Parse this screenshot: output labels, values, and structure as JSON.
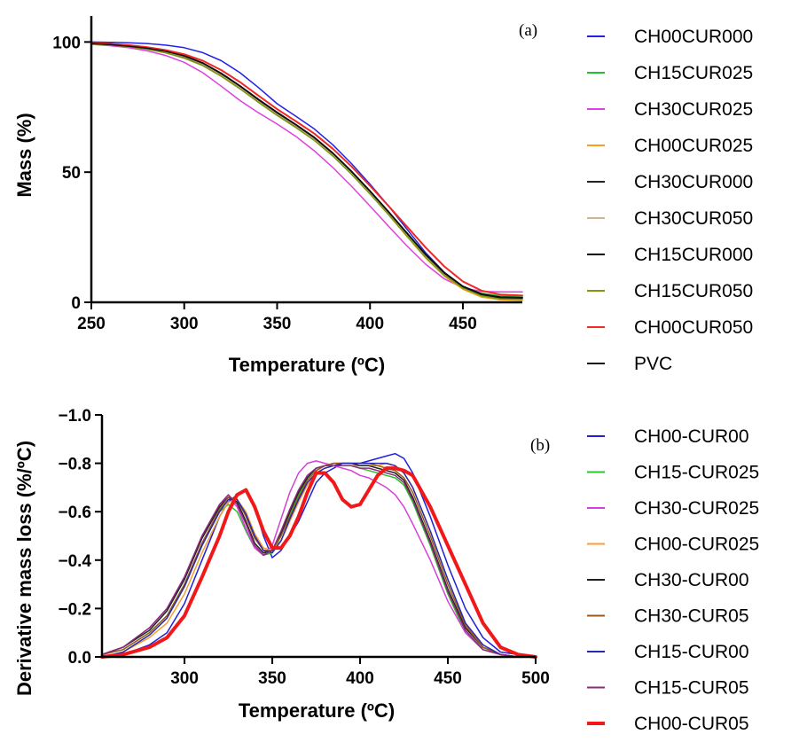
{
  "chart_data": [
    {
      "type": "line",
      "panel_label": "(a)",
      "xlabel": "Temperature (ºC)",
      "ylabel": "Mass (%)",
      "xlim": [
        250,
        482
      ],
      "ylim": [
        0,
        110
      ],
      "xticks": [
        250,
        300,
        350,
        400,
        450
      ],
      "yticks": [
        0,
        50,
        100
      ],
      "grid": false,
      "legend_position": "right",
      "x": [
        250,
        260,
        270,
        280,
        290,
        300,
        310,
        320,
        330,
        340,
        350,
        360,
        370,
        380,
        390,
        400,
        410,
        420,
        430,
        440,
        450,
        460,
        470,
        482
      ],
      "series": [
        {
          "name": "CH00CUR000",
          "color": "#2222e6",
          "width": 1.5,
          "values": [
            100.0,
            99.9,
            99.7,
            99.4,
            98.8,
            97.8,
            95.9,
            92.8,
            88.2,
            82.5,
            76.3,
            71.5,
            66.6,
            60.5,
            53.3,
            45.4,
            37.0,
            28.0,
            19.0,
            11.5,
            6.0,
            3.0,
            2.0,
            1.8
          ]
        },
        {
          "name": "CH15CUR025",
          "color": "#22c032",
          "width": 1.5,
          "values": [
            99.3,
            98.9,
            98.3,
            97.4,
            96.0,
            94.1,
            91.2,
            87.0,
            82.2,
            77.0,
            72.0,
            67.5,
            62.5,
            56.5,
            49.5,
            42.0,
            34.0,
            25.8,
            17.8,
            11.0,
            6.0,
            3.5,
            2.5,
            2.3
          ]
        },
        {
          "name": "CH30CUR025",
          "color": "#e040e0",
          "width": 1.5,
          "values": [
            99.1,
            98.6,
            97.8,
            96.6,
            94.8,
            92.2,
            88.2,
            83.0,
            77.5,
            72.8,
            68.5,
            63.8,
            58.2,
            51.8,
            44.6,
            37.0,
            29.2,
            21.6,
            14.6,
            9.0,
            5.6,
            4.2,
            4.0,
            4.0
          ]
        },
        {
          "name": "CH00CUR025",
          "color": "#f5a020",
          "width": 1.5,
          "values": [
            99.4,
            99.0,
            98.4,
            97.6,
            96.4,
            94.6,
            91.8,
            87.8,
            83.0,
            77.8,
            72.6,
            68.0,
            63.0,
            56.8,
            49.6,
            41.8,
            33.6,
            25.2,
            17.0,
            10.0,
            5.0,
            2.0,
            1.0,
            0.8
          ]
        },
        {
          "name": "CH30CUR000",
          "color": "#222222",
          "width": 1.5,
          "values": [
            99.3,
            98.9,
            98.3,
            97.4,
            96.0,
            94.2,
            91.3,
            87.2,
            82.4,
            77.2,
            72.2,
            67.6,
            62.6,
            56.6,
            49.6,
            42.0,
            34.0,
            25.8,
            17.6,
            10.8,
            5.8,
            3.0,
            2.0,
            1.8
          ]
        },
        {
          "name": "CH30CUR050",
          "color": "#d4b48c",
          "width": 1.5,
          "values": [
            99.4,
            99.0,
            98.4,
            97.5,
            96.2,
            94.4,
            91.5,
            87.4,
            82.6,
            77.4,
            72.4,
            67.8,
            62.8,
            56.8,
            49.8,
            42.2,
            34.2,
            26.0,
            17.8,
            10.8,
            5.6,
            2.6,
            1.4,
            1.2
          ]
        },
        {
          "name": "CH15CUR000",
          "color": "#000000",
          "width": 1.5,
          "values": [
            99.5,
            99.1,
            98.6,
            97.8,
            96.6,
            94.8,
            92.0,
            88.0,
            83.2,
            78.0,
            73.0,
            68.4,
            63.4,
            57.4,
            50.4,
            42.8,
            34.8,
            26.6,
            18.4,
            11.4,
            6.2,
            3.2,
            2.0,
            1.8
          ]
        },
        {
          "name": "CH15CUR050",
          "color": "#7a9a10",
          "width": 1.5,
          "values": [
            99.2,
            98.8,
            98.2,
            97.2,
            95.8,
            93.8,
            90.9,
            86.8,
            82.0,
            76.8,
            71.8,
            67.2,
            62.2,
            56.2,
            49.2,
            41.6,
            33.6,
            25.4,
            17.2,
            10.4,
            5.4,
            2.5,
            1.3,
            1.1
          ]
        },
        {
          "name": "CH00CUR050",
          "color": "#f02828",
          "width": 2,
          "values": [
            99.6,
            99.3,
            98.8,
            98.0,
            96.9,
            95.3,
            92.8,
            89.2,
            84.6,
            79.4,
            74.2,
            69.6,
            64.8,
            59.0,
            52.2,
            44.8,
            37.0,
            29.0,
            21.0,
            13.8,
            8.0,
            4.5,
            3.0,
            2.6
          ]
        },
        {
          "name": "PVC",
          "color": "#111111",
          "width": 1.5,
          "values": [
            99.4,
            99.0,
            98.4,
            97.6,
            96.4,
            94.6,
            91.8,
            87.8,
            83.0,
            77.8,
            72.8,
            68.2,
            63.2,
            57.2,
            50.2,
            42.6,
            34.6,
            26.4,
            18.2,
            11.2,
            6.0,
            3.0,
            1.8,
            1.6
          ]
        }
      ]
    },
    {
      "type": "line",
      "panel_label": "(b)",
      "xlabel": "Temperature (ºC)",
      "ylabel": "Derivative mass loss (%/ºC)",
      "xlim": [
        253,
        500
      ],
      "ylim": [
        0,
        -1.0
      ],
      "xticks": [
        300,
        350,
        400,
        450,
        500
      ],
      "yticks": [
        0.0,
        -0.2,
        -0.4,
        -0.6,
        -0.8,
        -1.0
      ],
      "ytick_labels": [
        "0.0",
        "−0.2",
        "−0.4",
        "−0.6",
        "−0.8",
        "−1.0"
      ],
      "grid": false,
      "legend_position": "right",
      "x": [
        253,
        265,
        280,
        290,
        300,
        310,
        320,
        325,
        330,
        335,
        340,
        345,
        350,
        355,
        360,
        365,
        370,
        375,
        380,
        385,
        390,
        395,
        400,
        405,
        410,
        415,
        420,
        425,
        430,
        440,
        450,
        460,
        470,
        480,
        490,
        500
      ],
      "series": [
        {
          "name": "CH00-CUR00",
          "color": "#2020d8",
          "width": 1.5,
          "values": [
            0.0,
            -0.01,
            -0.05,
            -0.1,
            -0.22,
            -0.4,
            -0.58,
            -0.64,
            -0.67,
            -0.69,
            -0.62,
            -0.5,
            -0.41,
            -0.44,
            -0.5,
            -0.56,
            -0.64,
            -0.72,
            -0.76,
            -0.78,
            -0.8,
            -0.8,
            -0.8,
            -0.81,
            -0.82,
            -0.83,
            -0.84,
            -0.82,
            -0.76,
            -0.58,
            -0.38,
            -0.2,
            -0.08,
            -0.02,
            -0.01,
            0.0
          ]
        },
        {
          "name": "CH15-CUR025",
          "color": "#2cc42c",
          "width": 1.5,
          "values": [
            -0.01,
            -0.03,
            -0.1,
            -0.17,
            -0.3,
            -0.46,
            -0.6,
            -0.63,
            -0.6,
            -0.52,
            -0.45,
            -0.42,
            -0.43,
            -0.5,
            -0.59,
            -0.67,
            -0.74,
            -0.78,
            -0.79,
            -0.79,
            -0.79,
            -0.79,
            -0.78,
            -0.77,
            -0.76,
            -0.75,
            -0.74,
            -0.71,
            -0.64,
            -0.46,
            -0.26,
            -0.1,
            -0.03,
            -0.01,
            0.0,
            0.0
          ]
        },
        {
          "name": "CH30-CUR025",
          "color": "#d640d6",
          "width": 1.5,
          "values": [
            -0.01,
            -0.04,
            -0.12,
            -0.2,
            -0.33,
            -0.5,
            -0.63,
            -0.66,
            -0.62,
            -0.53,
            -0.45,
            -0.42,
            -0.46,
            -0.57,
            -0.68,
            -0.76,
            -0.8,
            -0.81,
            -0.8,
            -0.79,
            -0.78,
            -0.77,
            -0.75,
            -0.74,
            -0.72,
            -0.7,
            -0.67,
            -0.62,
            -0.55,
            -0.4,
            -0.23,
            -0.1,
            -0.03,
            -0.01,
            0.0,
            0.0
          ]
        },
        {
          "name": "CH00-CUR025",
          "color": "#f4a030",
          "width": 1.5,
          "values": [
            0.0,
            -0.02,
            -0.08,
            -0.14,
            -0.26,
            -0.43,
            -0.58,
            -0.64,
            -0.65,
            -0.6,
            -0.51,
            -0.45,
            -0.44,
            -0.48,
            -0.56,
            -0.64,
            -0.71,
            -0.76,
            -0.78,
            -0.79,
            -0.79,
            -0.79,
            -0.79,
            -0.79,
            -0.79,
            -0.8,
            -0.79,
            -0.76,
            -0.7,
            -0.52,
            -0.32,
            -0.14,
            -0.04,
            -0.01,
            0.0,
            0.0
          ]
        },
        {
          "name": "CH30-CUR00",
          "color": "#202020",
          "width": 1.5,
          "values": [
            -0.01,
            -0.04,
            -0.11,
            -0.19,
            -0.32,
            -0.49,
            -0.62,
            -0.66,
            -0.64,
            -0.56,
            -0.47,
            -0.43,
            -0.44,
            -0.51,
            -0.6,
            -0.68,
            -0.74,
            -0.78,
            -0.79,
            -0.8,
            -0.8,
            -0.8,
            -0.79,
            -0.79,
            -0.78,
            -0.77,
            -0.76,
            -0.73,
            -0.66,
            -0.48,
            -0.28,
            -0.12,
            -0.04,
            -0.01,
            0.0,
            0.0
          ]
        },
        {
          "name": "CH30-CUR05",
          "color": "#9a5a1c",
          "width": 1.5,
          "values": [
            -0.01,
            -0.03,
            -0.1,
            -0.17,
            -0.3,
            -0.47,
            -0.61,
            -0.66,
            -0.65,
            -0.58,
            -0.49,
            -0.44,
            -0.44,
            -0.5,
            -0.58,
            -0.66,
            -0.73,
            -0.77,
            -0.79,
            -0.8,
            -0.8,
            -0.8,
            -0.8,
            -0.8,
            -0.79,
            -0.78,
            -0.77,
            -0.74,
            -0.68,
            -0.5,
            -0.3,
            -0.13,
            -0.04,
            -0.01,
            0.0,
            0.0
          ]
        },
        {
          "name": "CH15-CUR00",
          "color": "#2828b0",
          "width": 1.5,
          "values": [
            0.0,
            -0.02,
            -0.09,
            -0.16,
            -0.29,
            -0.46,
            -0.6,
            -0.65,
            -0.65,
            -0.59,
            -0.5,
            -0.44,
            -0.43,
            -0.48,
            -0.57,
            -0.65,
            -0.72,
            -0.76,
            -0.78,
            -0.79,
            -0.8,
            -0.8,
            -0.8,
            -0.8,
            -0.8,
            -0.8,
            -0.79,
            -0.76,
            -0.7,
            -0.52,
            -0.32,
            -0.14,
            -0.05,
            -0.01,
            0.0,
            0.0
          ]
        },
        {
          "name": "CH15-CUR05",
          "color": "#8a2a7a",
          "width": 1.5,
          "values": [
            -0.01,
            -0.04,
            -0.12,
            -0.2,
            -0.33,
            -0.5,
            -0.63,
            -0.67,
            -0.63,
            -0.55,
            -0.46,
            -0.42,
            -0.44,
            -0.52,
            -0.61,
            -0.69,
            -0.75,
            -0.78,
            -0.79,
            -0.79,
            -0.79,
            -0.79,
            -0.78,
            -0.78,
            -0.77,
            -0.76,
            -0.75,
            -0.72,
            -0.65,
            -0.47,
            -0.27,
            -0.11,
            -0.03,
            -0.01,
            0.0,
            0.0
          ]
        },
        {
          "name": "CH00-CUR05",
          "color": "#f01818",
          "width": 4,
          "values": [
            0.0,
            -0.01,
            -0.04,
            -0.08,
            -0.17,
            -0.33,
            -0.5,
            -0.6,
            -0.67,
            -0.69,
            -0.62,
            -0.52,
            -0.45,
            -0.45,
            -0.5,
            -0.58,
            -0.68,
            -0.76,
            -0.76,
            -0.72,
            -0.65,
            -0.62,
            -0.63,
            -0.69,
            -0.75,
            -0.78,
            -0.78,
            -0.77,
            -0.75,
            -0.62,
            -0.46,
            -0.3,
            -0.14,
            -0.04,
            -0.01,
            0.0
          ]
        }
      ]
    }
  ]
}
